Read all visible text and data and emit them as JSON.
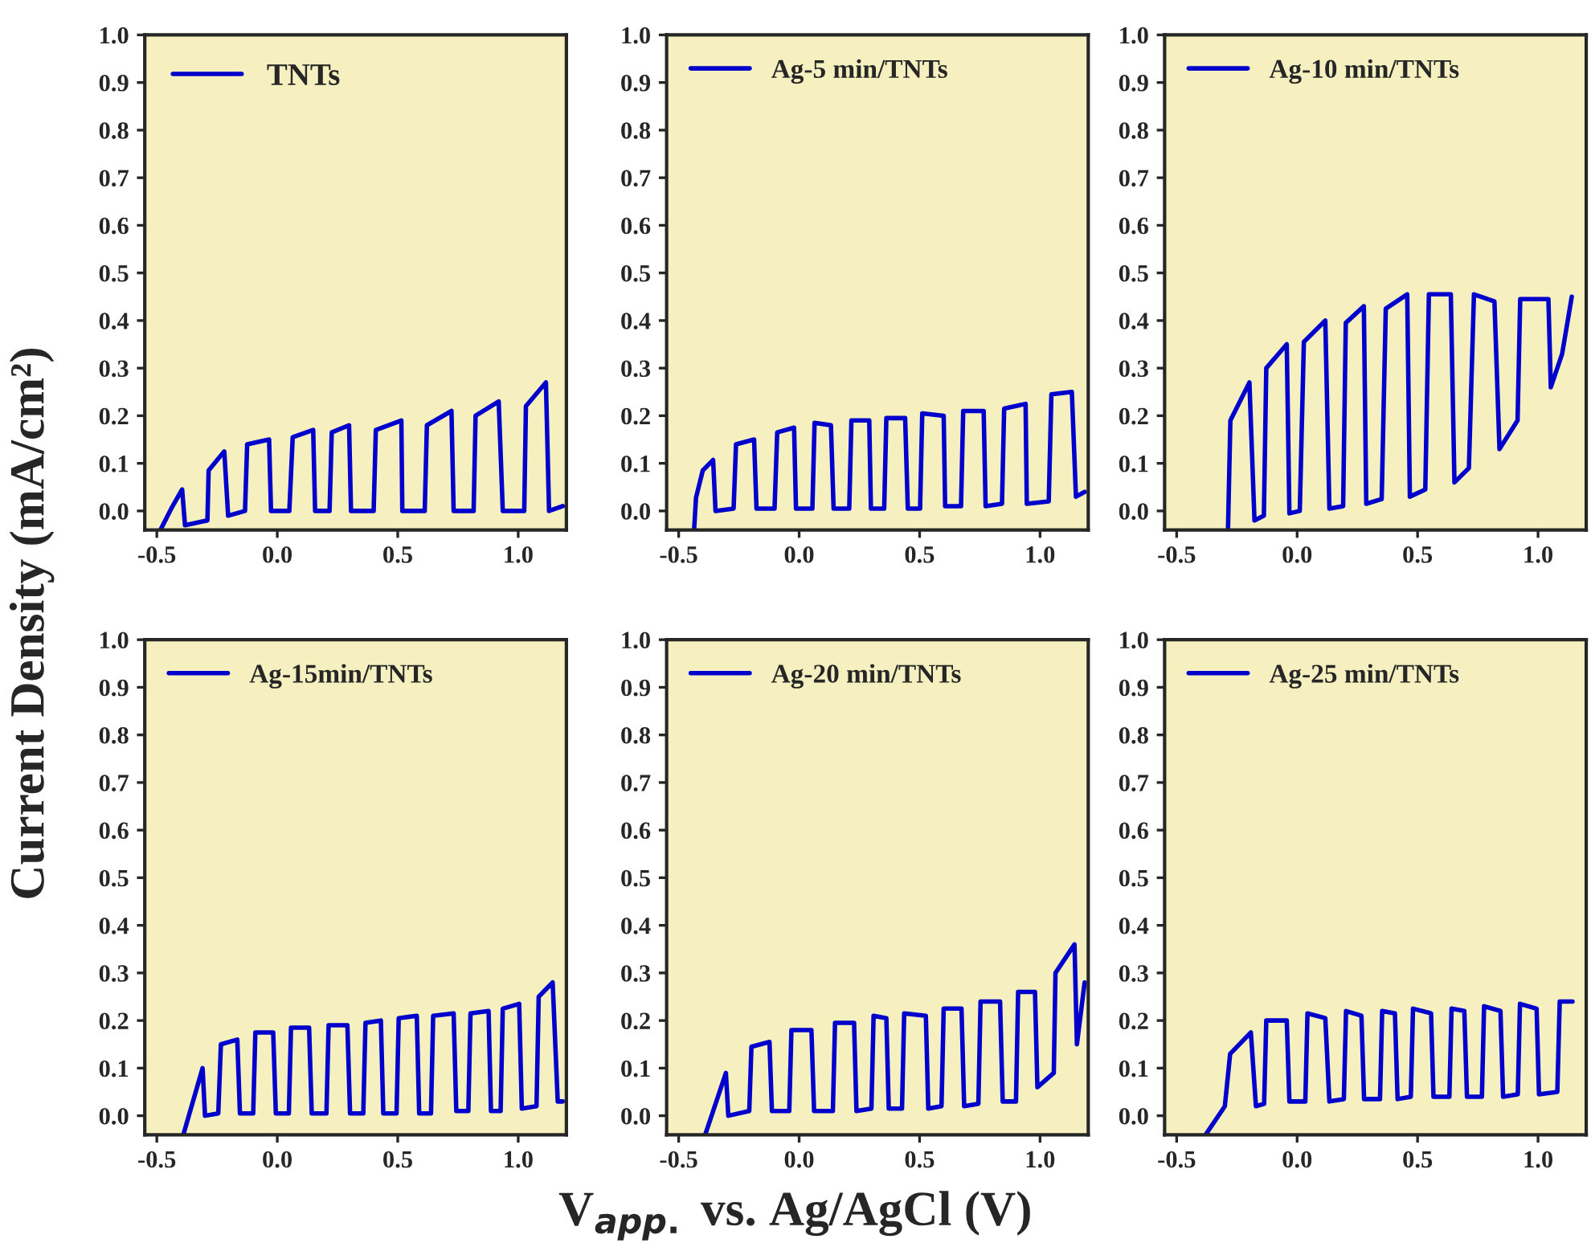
{
  "chart_data": [
    {
      "type": "line",
      "ylabel": "Current Density (mA/cm²)",
      "legend": "top left",
      "xlim": [
        -0.55,
        1.2
      ],
      "ylim": [
        -0.04,
        1.0
      ],
      "xticks": [
        {
          "value": -0.5,
          "label": "-0.5"
        },
        {
          "value": 0.0,
          "label": "0.0"
        },
        {
          "value": 0.5,
          "label": "0.5"
        },
        {
          "value": 1.0,
          "label": "1.0"
        }
      ],
      "yticks": [
        {
          "value": 0.0,
          "label": "0.0"
        },
        {
          "value": 0.1,
          "label": "0.1"
        },
        {
          "value": 0.2,
          "label": "0.2"
        },
        {
          "value": 0.3,
          "label": "0.3"
        },
        {
          "value": 0.4,
          "label": "0.4"
        },
        {
          "value": 0.5,
          "label": "0.5"
        },
        {
          "value": 0.6,
          "label": "0.6"
        },
        {
          "value": 0.7,
          "label": "0.7"
        },
        {
          "value": 0.8,
          "label": "0.8"
        },
        {
          "value": 0.9,
          "label": "0.9"
        },
        {
          "value": 1.0,
          "label": "1.0"
        }
      ],
      "series": [
        {
          "name": "TNTs",
          "color": "#0000cc",
          "x": [
            -0.485,
            -0.44,
            -0.395,
            -0.383,
            -0.29,
            -0.285,
            -0.22,
            -0.204,
            -0.134,
            -0.125,
            -0.034,
            -0.026,
            0.05,
            0.064,
            0.149,
            0.157,
            0.217,
            0.226,
            0.298,
            0.306,
            0.4,
            0.409,
            0.515,
            0.519,
            0.612,
            0.621,
            0.723,
            0.732,
            0.815,
            0.823,
            0.919,
            0.936,
            1.025,
            1.032,
            1.115,
            1.128,
            1.185
          ],
          "values": [
            -0.04,
            0.005,
            0.045,
            -0.03,
            -0.02,
            0.085,
            0.125,
            -0.01,
            0.0,
            0.14,
            0.15,
            0.0,
            0.0,
            0.155,
            0.17,
            0.0,
            0.0,
            0.165,
            0.18,
            0.0,
            0.0,
            0.17,
            0.19,
            0.0,
            0.0,
            0.18,
            0.21,
            0.0,
            0.0,
            0.2,
            0.23,
            0.0,
            0.0,
            0.22,
            0.27,
            0.0,
            0.01
          ]
        }
      ]
    },
    {
      "type": "line",
      "legend": "top left",
      "xlim": [
        -0.55,
        1.2
      ],
      "ylim": [
        -0.04,
        1.0
      ],
      "xticks": [
        {
          "value": -0.5,
          "label": "-0.5"
        },
        {
          "value": 0.0,
          "label": "0.0"
        },
        {
          "value": 0.5,
          "label": "0.5"
        },
        {
          "value": 1.0,
          "label": "1.0"
        }
      ],
      "yticks": [
        {
          "value": 0.0,
          "label": "0.0"
        },
        {
          "value": 0.1,
          "label": "0.1"
        },
        {
          "value": 0.2,
          "label": "0.2"
        },
        {
          "value": 0.3,
          "label": "0.3"
        },
        {
          "value": 0.4,
          "label": "0.4"
        },
        {
          "value": 0.5,
          "label": "0.5"
        },
        {
          "value": 0.6,
          "label": "0.6"
        },
        {
          "value": 0.7,
          "label": "0.7"
        },
        {
          "value": 0.8,
          "label": "0.8"
        },
        {
          "value": 0.9,
          "label": "0.9"
        },
        {
          "value": 1.0,
          "label": "1.0"
        }
      ],
      "series": [
        {
          "name": "Ag-5 min/TNTs",
          "color": "#0000cc",
          "x": [
            -0.436,
            -0.428,
            -0.4,
            -0.357,
            -0.347,
            -0.272,
            -0.262,
            -0.187,
            -0.177,
            -0.102,
            -0.091,
            -0.021,
            -0.013,
            0.055,
            0.064,
            0.132,
            0.143,
            0.208,
            0.217,
            0.291,
            0.298,
            0.353,
            0.362,
            0.44,
            0.451,
            0.502,
            0.511,
            0.6,
            0.606,
            0.672,
            0.681,
            0.766,
            0.774,
            0.842,
            0.851,
            0.94,
            0.945,
            1.036,
            1.047,
            1.132,
            1.149,
            1.185
          ],
          "values": [
            -0.04,
            0.028,
            0.085,
            0.107,
            0.0,
            0.005,
            0.14,
            0.15,
            0.005,
            0.005,
            0.165,
            0.175,
            0.005,
            0.005,
            0.185,
            0.18,
            0.005,
            0.005,
            0.19,
            0.19,
            0.005,
            0.005,
            0.195,
            0.195,
            0.005,
            0.005,
            0.205,
            0.2,
            0.01,
            0.01,
            0.21,
            0.21,
            0.01,
            0.015,
            0.215,
            0.225,
            0.015,
            0.02,
            0.245,
            0.25,
            0.03,
            0.04
          ]
        }
      ]
    },
    {
      "type": "line",
      "legend": "top left",
      "xlim": [
        -0.55,
        1.2
      ],
      "ylim": [
        -0.04,
        1.0
      ],
      "xticks": [
        {
          "value": -0.5,
          "label": "-0.5"
        },
        {
          "value": 0.0,
          "label": "0.0"
        },
        {
          "value": 0.5,
          "label": "0.5"
        },
        {
          "value": 1.0,
          "label": "1.0"
        }
      ],
      "yticks": [
        {
          "value": 0.0,
          "label": "0.0"
        },
        {
          "value": 0.1,
          "label": "0.1"
        },
        {
          "value": 0.2,
          "label": "0.2"
        },
        {
          "value": 0.3,
          "label": "0.3"
        },
        {
          "value": 0.4,
          "label": "0.4"
        },
        {
          "value": 0.5,
          "label": "0.5"
        },
        {
          "value": 0.6,
          "label": "0.6"
        },
        {
          "value": 0.7,
          "label": "0.7"
        },
        {
          "value": 0.8,
          "label": "0.8"
        },
        {
          "value": 0.9,
          "label": "0.9"
        },
        {
          "value": 1.0,
          "label": "1.0"
        }
      ],
      "series": [
        {
          "name": "Ag-10 min/TNTs",
          "color": "#0000cc",
          "x": [
            -0.287,
            -0.277,
            -0.198,
            -0.177,
            -0.138,
            -0.128,
            -0.043,
            -0.032,
            0.011,
            0.028,
            0.117,
            0.134,
            0.191,
            0.202,
            0.277,
            0.287,
            0.351,
            0.368,
            0.457,
            0.468,
            0.532,
            0.547,
            0.638,
            0.653,
            0.713,
            0.734,
            0.819,
            0.84,
            0.915,
            0.926,
            1.043,
            1.053,
            1.1,
            1.14
          ],
          "values": [
            -0.04,
            0.19,
            0.27,
            -0.02,
            -0.01,
            0.3,
            0.35,
            -0.005,
            0.0,
            0.355,
            0.4,
            0.005,
            0.01,
            0.395,
            0.43,
            0.015,
            0.025,
            0.425,
            0.455,
            0.03,
            0.045,
            0.455,
            0.455,
            0.06,
            0.09,
            0.455,
            0.44,
            0.13,
            0.19,
            0.445,
            0.445,
            0.26,
            0.33,
            0.45
          ]
        }
      ]
    },
    {
      "type": "line",
      "legend": "top left",
      "xlim": [
        -0.55,
        1.2
      ],
      "ylim": [
        -0.04,
        1.0
      ],
      "xticks": [
        {
          "value": -0.5,
          "label": "-0.5"
        },
        {
          "value": 0.0,
          "label": "0.0"
        },
        {
          "value": 0.5,
          "label": "0.5"
        },
        {
          "value": 1.0,
          "label": "1.0"
        }
      ],
      "yticks": [
        {
          "value": 0.0,
          "label": "0.0"
        },
        {
          "value": 0.1,
          "label": "0.1"
        },
        {
          "value": 0.2,
          "label": "0.2"
        },
        {
          "value": 0.3,
          "label": "0.3"
        },
        {
          "value": 0.4,
          "label": "0.4"
        },
        {
          "value": 0.5,
          "label": "0.5"
        },
        {
          "value": 0.6,
          "label": "0.6"
        },
        {
          "value": 0.7,
          "label": "0.7"
        },
        {
          "value": 0.8,
          "label": "0.8"
        },
        {
          "value": 0.9,
          "label": "0.9"
        },
        {
          "value": 1.0,
          "label": "1.0"
        }
      ],
      "series": [
        {
          "name": "Ag-15min/TNTs",
          "color": "#0000cc",
          "x": [
            -0.39,
            -0.31,
            -0.3,
            -0.245,
            -0.234,
            -0.166,
            -0.155,
            -0.1,
            -0.091,
            -0.017,
            -0.006,
            0.048,
            0.057,
            0.132,
            0.143,
            0.204,
            0.213,
            0.291,
            0.302,
            0.357,
            0.366,
            0.43,
            0.44,
            0.495,
            0.504,
            0.579,
            0.589,
            0.638,
            0.647,
            0.732,
            0.743,
            0.793,
            0.802,
            0.877,
            0.887,
            0.927,
            0.936,
            1.004,
            1.015,
            1.076,
            1.085,
            1.143,
            1.164,
            1.185
          ],
          "values": [
            -0.04,
            0.1,
            0.0,
            0.005,
            0.15,
            0.16,
            0.005,
            0.005,
            0.175,
            0.175,
            0.005,
            0.005,
            0.185,
            0.185,
            0.005,
            0.005,
            0.19,
            0.19,
            0.005,
            0.005,
            0.195,
            0.2,
            0.005,
            0.005,
            0.205,
            0.21,
            0.005,
            0.005,
            0.21,
            0.215,
            0.01,
            0.01,
            0.215,
            0.22,
            0.01,
            0.01,
            0.225,
            0.235,
            0.015,
            0.02,
            0.25,
            0.28,
            0.03,
            0.03
          ]
        }
      ]
    },
    {
      "type": "line",
      "xlabel": "V$_{app.}$ vs. Ag/AgCl (V)",
      "legend": "top left",
      "xlim": [
        -0.55,
        1.2
      ],
      "ylim": [
        -0.04,
        1.0
      ],
      "xticks": [
        {
          "value": -0.5,
          "label": "-0.5"
        },
        {
          "value": 0.0,
          "label": "0.0"
        },
        {
          "value": 0.5,
          "label": "0.5"
        },
        {
          "value": 1.0,
          "label": "1.0"
        }
      ],
      "yticks": [
        {
          "value": 0.0,
          "label": "0.0"
        },
        {
          "value": 0.1,
          "label": "0.1"
        },
        {
          "value": 0.2,
          "label": "0.2"
        },
        {
          "value": 0.3,
          "label": "0.3"
        },
        {
          "value": 0.4,
          "label": "0.4"
        },
        {
          "value": 0.5,
          "label": "0.5"
        },
        {
          "value": 0.6,
          "label": "0.6"
        },
        {
          "value": 0.7,
          "label": "0.7"
        },
        {
          "value": 0.8,
          "label": "0.8"
        },
        {
          "value": 0.9,
          "label": "0.9"
        },
        {
          "value": 1.0,
          "label": "1.0"
        }
      ],
      "series": [
        {
          "name": "Ag-20 min/TNTs",
          "color": "#0000cc",
          "x": [
            -0.39,
            -0.304,
            -0.294,
            -0.207,
            -0.198,
            -0.123,
            -0.113,
            -0.041,
            -0.032,
            0.051,
            0.062,
            0.14,
            0.149,
            0.228,
            0.238,
            0.3,
            0.309,
            0.362,
            0.372,
            0.427,
            0.436,
            0.526,
            0.536,
            0.591,
            0.6,
            0.674,
            0.685,
            0.744,
            0.753,
            0.834,
            0.845,
            0.9,
            0.909,
            0.979,
            0.989,
            1.057,
            1.064,
            1.143,
            1.153,
            1.185
          ],
          "values": [
            -0.04,
            0.09,
            0.0,
            0.01,
            0.145,
            0.155,
            0.01,
            0.01,
            0.18,
            0.18,
            0.01,
            0.01,
            0.195,
            0.195,
            0.01,
            0.015,
            0.21,
            0.205,
            0.015,
            0.015,
            0.215,
            0.21,
            0.015,
            0.02,
            0.225,
            0.225,
            0.02,
            0.025,
            0.24,
            0.24,
            0.03,
            0.03,
            0.26,
            0.26,
            0.06,
            0.09,
            0.3,
            0.36,
            0.15,
            0.28
          ]
        }
      ]
    },
    {
      "type": "line",
      "legend": "top left",
      "xlim": [
        -0.55,
        1.2
      ],
      "ylim": [
        -0.04,
        1.0
      ],
      "xticks": [
        {
          "value": -0.5,
          "label": "-0.5"
        },
        {
          "value": 0.0,
          "label": "0.0"
        },
        {
          "value": 0.5,
          "label": "0.5"
        },
        {
          "value": 1.0,
          "label": "1.0"
        }
      ],
      "yticks": [
        {
          "value": 0.0,
          "label": "0.0"
        },
        {
          "value": 0.1,
          "label": "0.1"
        },
        {
          "value": 0.2,
          "label": "0.2"
        },
        {
          "value": 0.3,
          "label": "0.3"
        },
        {
          "value": 0.4,
          "label": "0.4"
        },
        {
          "value": 0.5,
          "label": "0.5"
        },
        {
          "value": 0.6,
          "label": "0.6"
        },
        {
          "value": 0.7,
          "label": "0.7"
        },
        {
          "value": 0.8,
          "label": "0.8"
        },
        {
          "value": 0.9,
          "label": "0.9"
        },
        {
          "value": 1.0,
          "label": "1.0"
        }
      ],
      "series": [
        {
          "name": "Ag-25 min/TNTs",
          "color": "#0000cc",
          "x": [
            -0.38,
            -0.3,
            -0.278,
            -0.192,
            -0.171,
            -0.137,
            -0.128,
            -0.043,
            -0.032,
            0.034,
            0.043,
            0.117,
            0.134,
            0.194,
            0.203,
            0.267,
            0.278,
            0.344,
            0.353,
            0.406,
            0.417,
            0.472,
            0.481,
            0.556,
            0.566,
            0.632,
            0.641,
            0.694,
            0.705,
            0.767,
            0.776,
            0.844,
            0.855,
            0.916,
            0.925,
            0.994,
            1.004,
            1.08,
            1.09,
            1.143
          ],
          "values": [
            -0.04,
            0.02,
            0.13,
            0.175,
            0.02,
            0.025,
            0.2,
            0.2,
            0.03,
            0.03,
            0.215,
            0.205,
            0.03,
            0.035,
            0.22,
            0.21,
            0.035,
            0.035,
            0.22,
            0.215,
            0.035,
            0.04,
            0.225,
            0.215,
            0.04,
            0.04,
            0.225,
            0.22,
            0.04,
            0.04,
            0.23,
            0.22,
            0.04,
            0.045,
            0.235,
            0.225,
            0.045,
            0.05,
            0.24,
            0.24
          ]
        }
      ]
    }
  ]
}
